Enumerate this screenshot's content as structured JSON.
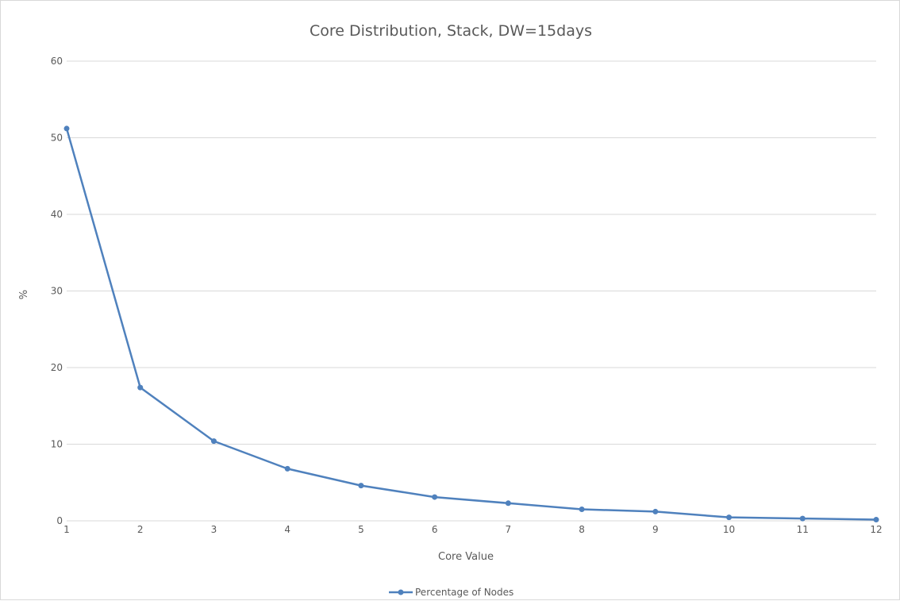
{
  "chart_data": {
    "type": "line",
    "title": "Core Distribution, Stack, DW=15days",
    "xlabel": "Core Value",
    "ylabel": "%",
    "x": [
      1,
      2,
      3,
      4,
      5,
      6,
      7,
      8,
      9,
      10,
      11,
      12
    ],
    "series": [
      {
        "name": "Percentage of Nodes",
        "color": "#4f81bd",
        "marker": "circle",
        "values": [
          51.2,
          17.4,
          10.4,
          6.8,
          4.6,
          3.1,
          2.3,
          1.5,
          1.2,
          0.45,
          0.3,
          0.15
        ]
      }
    ],
    "ylim": [
      0,
      60
    ],
    "yticks": [
      0,
      10,
      20,
      30,
      40,
      50,
      60
    ],
    "grid": "horizontal",
    "legend_position": "bottom"
  }
}
